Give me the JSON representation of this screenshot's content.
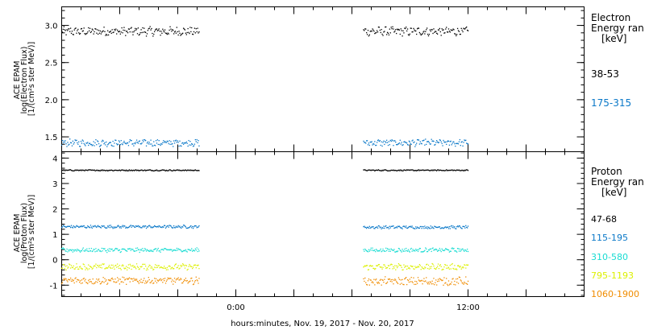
{
  "xlabel": "hours:minutes, Nov. 19, 2017 - Nov. 20, 2017",
  "x_ticks": [
    "0:00",
    "12:00"
  ],
  "colors": {
    "frame": "#000000",
    "series": [
      "#000000",
      "#0a78c8",
      "#18dcd2",
      "#dcf000",
      "#f08c00"
    ]
  },
  "chart_data": [
    {
      "type": "scatter",
      "panel": "electron",
      "ylabel": [
        "ACE EPAM",
        "log(Electron Flux)",
        "[1/(cm²s ster MeV)]"
      ],
      "ylim": [
        1.3,
        3.25
      ],
      "y_ticks": [
        1.5,
        2.0,
        2.5,
        3.0
      ],
      "y_tick_labels": [
        "1.5",
        "2.0",
        "2.5",
        "3.0"
      ],
      "x_range_hours": [
        -9,
        18
      ],
      "legend_title": [
        "Electron",
        "Energy ran",
        "[keV]"
      ],
      "series": [
        {
          "name": "38-53",
          "color": "#000000",
          "segments": [
            {
              "x_start": -9,
              "x_end": -1.9,
              "mean": 2.92,
              "spread": 0.05
            },
            {
              "x_start": 6.6,
              "x_end": 12.0,
              "mean": 2.92,
              "spread": 0.05
            }
          ]
        },
        {
          "name": "175-315",
          "color": "#0a78c8",
          "segments": [
            {
              "x_start": -9,
              "x_end": -1.9,
              "mean": 1.42,
              "spread": 0.04
            },
            {
              "x_start": 6.6,
              "x_end": 12.0,
              "mean": 1.42,
              "spread": 0.04
            }
          ]
        }
      ]
    },
    {
      "type": "scatter",
      "panel": "proton",
      "ylabel": [
        "ACE EPAM",
        "log(Proton Flux)",
        "[1/(cm²s ster MeV)]"
      ],
      "ylim": [
        -1.45,
        4.25
      ],
      "y_ticks": [
        -1,
        0,
        1,
        2,
        3,
        4
      ],
      "y_tick_labels": [
        "-1",
        "0",
        "1",
        "2",
        "3",
        "4"
      ],
      "x_range_hours": [
        -9,
        18
      ],
      "legend_title": [
        "Proton",
        "Energy ran",
        "[keV]"
      ],
      "series": [
        {
          "name": "47-68",
          "color": "#000000",
          "segments": [
            {
              "x_start": -9,
              "x_end": -1.9,
              "mean": 3.52,
              "spread": 0.02
            },
            {
              "x_start": 6.6,
              "x_end": 12.0,
              "mean": 3.52,
              "spread": 0.02
            }
          ]
        },
        {
          "name": "115-195",
          "color": "#0a78c8",
          "segments": [
            {
              "x_start": -9,
              "x_end": -1.9,
              "mean": 1.3,
              "spread": 0.05
            },
            {
              "x_start": 6.6,
              "x_end": 12.0,
              "mean": 1.28,
              "spread": 0.05
            }
          ]
        },
        {
          "name": "310-580",
          "color": "#18dcd2",
          "segments": [
            {
              "x_start": -9,
              "x_end": -1.9,
              "mean": 0.38,
              "spread": 0.07
            },
            {
              "x_start": 6.6,
              "x_end": 12.0,
              "mean": 0.38,
              "spread": 0.07
            }
          ]
        },
        {
          "name": "795-1193",
          "color": "#dcf000",
          "segments": [
            {
              "x_start": -9,
              "x_end": -1.9,
              "mean": -0.28,
              "spread": 0.1
            },
            {
              "x_start": 6.6,
              "x_end": 12.0,
              "mean": -0.28,
              "spread": 0.1
            }
          ]
        },
        {
          "name": "1060-1900",
          "color": "#f08c00",
          "segments": [
            {
              "x_start": -9,
              "x_end": -1.9,
              "mean": -0.82,
              "spread": 0.12
            },
            {
              "x_start": 6.6,
              "x_end": 12.0,
              "mean": -0.85,
              "spread": 0.14
            }
          ]
        }
      ]
    }
  ]
}
